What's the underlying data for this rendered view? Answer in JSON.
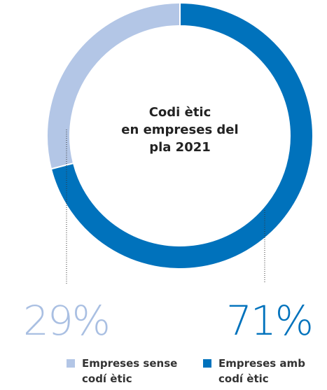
{
  "chart_data": {
    "type": "pie",
    "title": [
      "Codi ètic",
      "en empreses del",
      "pla 2021"
    ],
    "categories": [
      "Empreses amb codí ètic",
      "Empreses sense codí ètic"
    ],
    "values": [
      71,
      29
    ],
    "value_labels": [
      "71%",
      "29%"
    ],
    "colors": [
      "#0072bc",
      "#b3c6e6"
    ],
    "label_colors": [
      "#0072bc",
      "#a9bfe2"
    ]
  }
}
